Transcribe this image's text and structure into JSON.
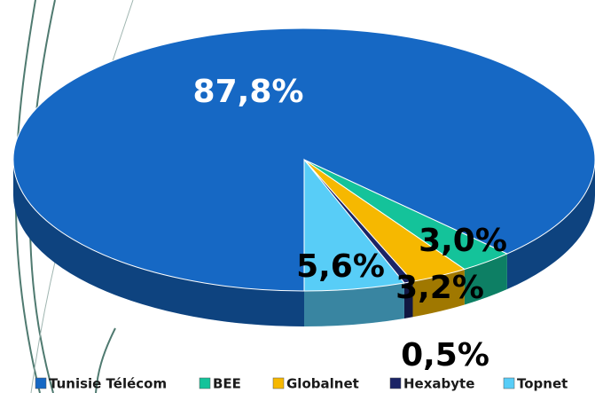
{
  "chart_data": {
    "type": "pie",
    "categories": [
      "Tunisie Télécom",
      "BEE",
      "Globalnet",
      "Hexabyte",
      "Topnet"
    ],
    "values": [
      87.8,
      3.0,
      3.2,
      0.5,
      5.6
    ],
    "value_labels": [
      "87,8%",
      "3,0%",
      "3,2%",
      "0,5%",
      "5,6%"
    ],
    "colors": [
      "#1668c4",
      "#14c39a",
      "#f6b800",
      "#1b2466",
      "#58cdf7"
    ]
  }
}
